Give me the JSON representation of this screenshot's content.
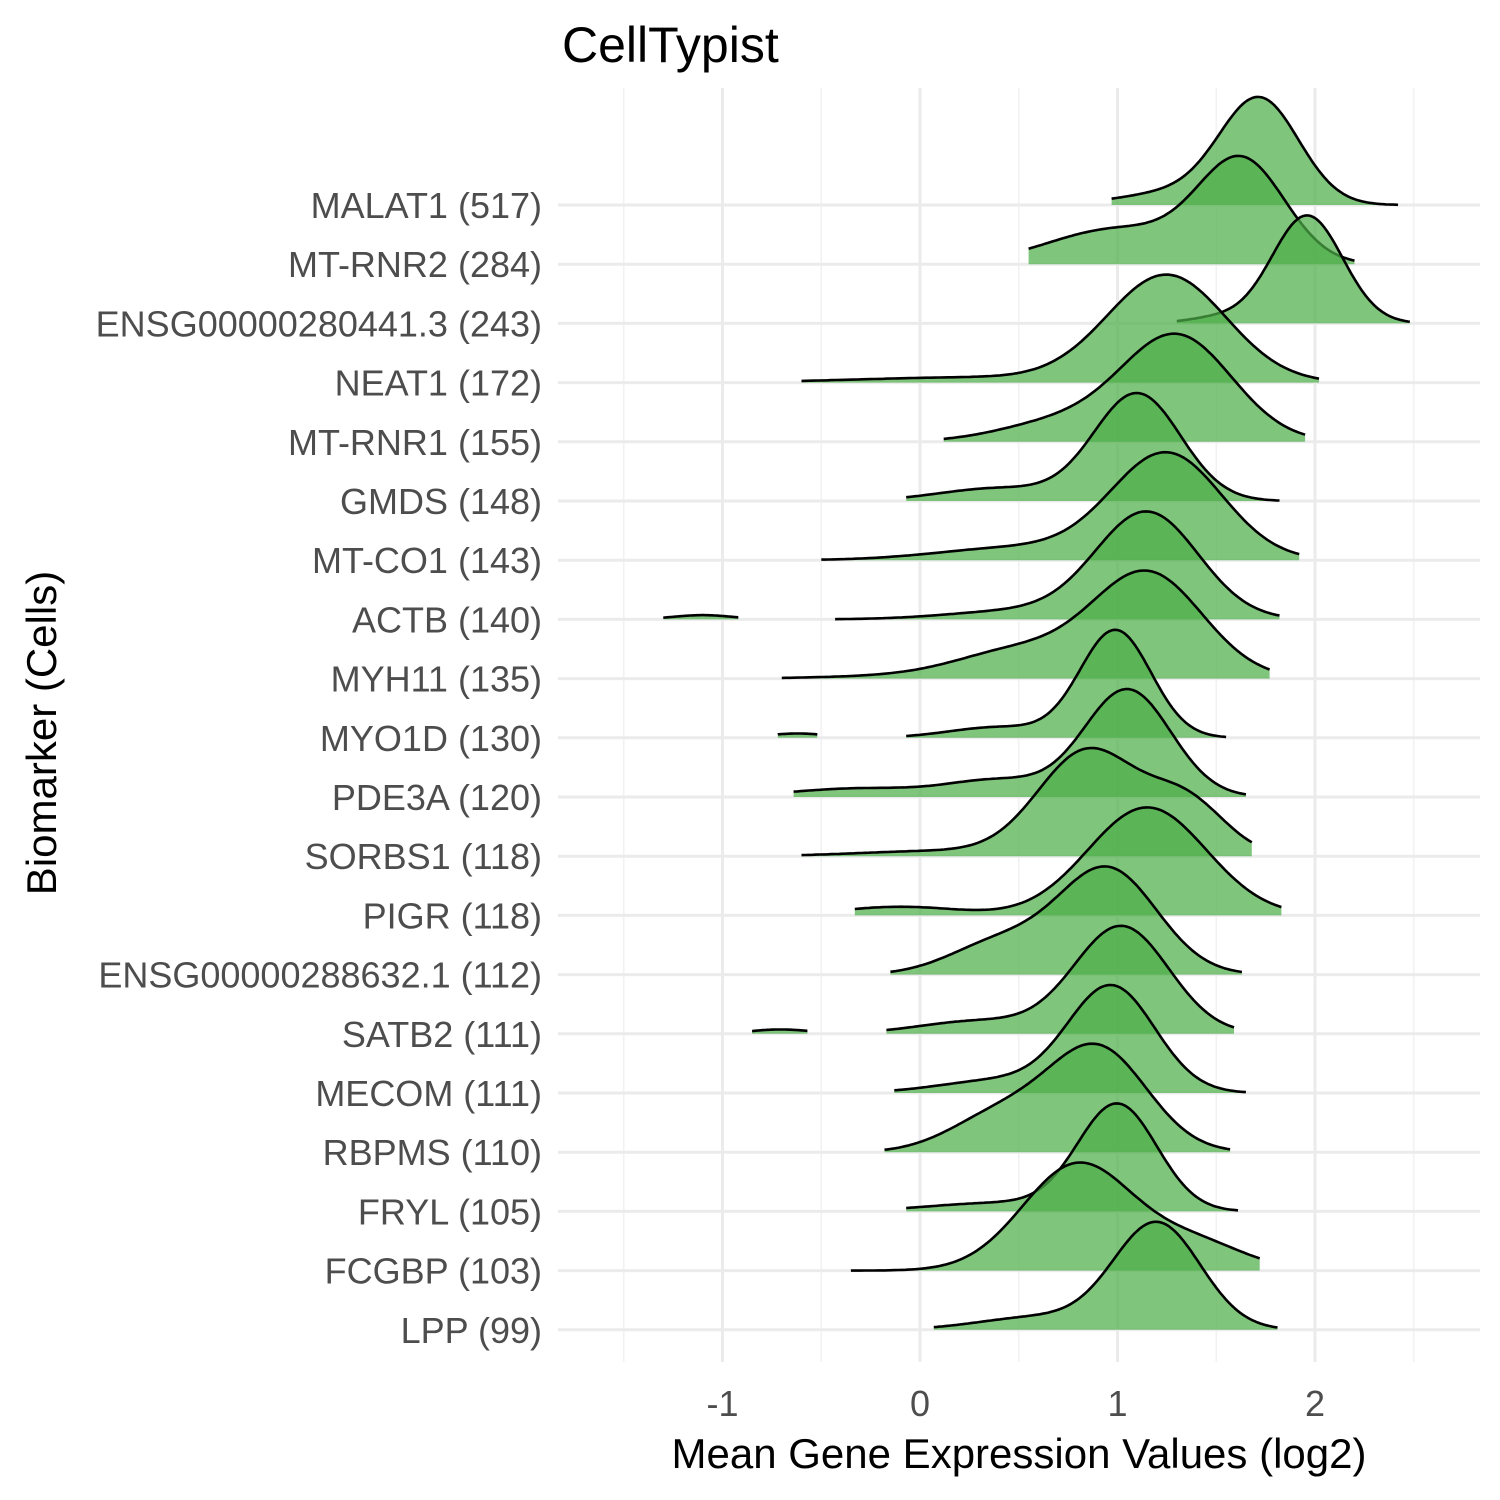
{
  "chart_data": {
    "type": "ridgeline",
    "title": "CellTypist",
    "xlabel": "Mean Gene Expression Values (log2)",
    "ylabel": "Biomarker (Cells)",
    "xlim": [
      -1.6,
      2.8
    ],
    "x_ticks": [
      -1,
      0,
      1,
      2
    ],
    "x_tick_labels": [
      "-1",
      "0",
      "1",
      "2"
    ],
    "grid": true,
    "fill_color": "#4daf4a",
    "fill_opacity": 0.72,
    "line_color": "#000000",
    "series": [
      {
        "label": "MALAT1 (517)",
        "segments": [
          {
            "min": 0.97,
            "max": 2.42,
            "peaks": [
              {
                "m": 1.72,
                "s": 0.2,
                "w": 1.0
              },
              {
                "m": 1.3,
                "s": 0.28,
                "w": 0.12
              }
            ]
          }
        ]
      },
      {
        "label": "MT-RNR2 (284)",
        "segments": [
          {
            "min": 0.55,
            "max": 2.2,
            "peaks": [
              {
                "m": 1.63,
                "s": 0.22,
                "w": 1.0
              },
              {
                "m": 1.0,
                "s": 0.35,
                "w": 0.35
              }
            ]
          }
        ]
      },
      {
        "label": "ENSG00000280441.3 (243)",
        "segments": [
          {
            "min": 1.3,
            "max": 2.48,
            "peaks": [
              {
                "m": 1.96,
                "s": 0.18,
                "w": 1.0
              },
              {
                "m": 1.5,
                "s": 0.15,
                "w": 0.05
              }
            ]
          }
        ]
      },
      {
        "label": "NEAT1 (172)",
        "segments": [
          {
            "min": -0.6,
            "max": 2.02,
            "peaks": [
              {
                "m": 1.25,
                "s": 0.3,
                "w": 1.0
              },
              {
                "m": 0.3,
                "s": 0.6,
                "w": 0.05
              }
            ]
          }
        ]
      },
      {
        "label": "MT-RNR1 (155)",
        "segments": [
          {
            "min": 0.12,
            "max": 1.95,
            "peaks": [
              {
                "m": 1.3,
                "s": 0.28,
                "w": 1.0
              },
              {
                "m": 0.7,
                "s": 0.3,
                "w": 0.18
              }
            ]
          }
        ]
      },
      {
        "label": "GMDS (148)",
        "segments": [
          {
            "min": -0.07,
            "max": 1.82,
            "peaks": [
              {
                "m": 1.1,
                "s": 0.22,
                "w": 1.0
              },
              {
                "m": 0.4,
                "s": 0.3,
                "w": 0.12
              }
            ]
          }
        ]
      },
      {
        "label": "MT-CO1 (143)",
        "segments": [
          {
            "min": -0.5,
            "max": 1.92,
            "peaks": [
              {
                "m": 1.25,
                "s": 0.28,
                "w": 1.0
              },
              {
                "m": 0.5,
                "s": 0.4,
                "w": 0.12
              }
            ]
          }
        ]
      },
      {
        "label": "ACTB (140)",
        "segments": [
          {
            "min": -1.3,
            "max": -0.92,
            "peaks": [
              {
                "m": -1.1,
                "s": 0.15,
                "w": 0.04
              }
            ]
          },
          {
            "min": -0.43,
            "max": 1.82,
            "peaks": [
              {
                "m": 1.15,
                "s": 0.26,
                "w": 1.0
              },
              {
                "m": 0.5,
                "s": 0.35,
                "w": 0.08
              }
            ]
          }
        ]
      },
      {
        "label": "MYH11 (135)",
        "segments": [
          {
            "min": -0.7,
            "max": 1.77,
            "peaks": [
              {
                "m": 1.15,
                "s": 0.28,
                "w": 1.0
              },
              {
                "m": 0.5,
                "s": 0.3,
                "w": 0.25
              },
              {
                "m": 0.0,
                "s": 0.4,
                "w": 0.03
              }
            ]
          }
        ]
      },
      {
        "label": "MYO1D (130)",
        "segments": [
          {
            "min": -0.72,
            "max": -0.52,
            "peaks": [
              {
                "m": -0.62,
                "s": 0.15,
                "w": 0.04
              }
            ]
          },
          {
            "min": -0.07,
            "max": 1.55,
            "peaks": [
              {
                "m": 0.99,
                "s": 0.18,
                "w": 1.0
              },
              {
                "m": 0.4,
                "s": 0.25,
                "w": 0.1
              }
            ]
          }
        ]
      },
      {
        "label": "PDE3A (120)",
        "segments": [
          {
            "min": -0.64,
            "max": 1.65,
            "peaks": [
              {
                "m": 1.05,
                "s": 0.22,
                "w": 1.0
              },
              {
                "m": 0.4,
                "s": 0.25,
                "w": 0.15
              },
              {
                "m": -0.3,
                "s": 0.35,
                "w": 0.08
              }
            ]
          }
        ]
      },
      {
        "label": "SORBS1 (118)",
        "segments": [
          {
            "min": -0.6,
            "max": 1.68,
            "peaks": [
              {
                "m": 0.85,
                "s": 0.25,
                "w": 1.0
              },
              {
                "m": 1.35,
                "s": 0.2,
                "w": 0.5
              },
              {
                "m": 0.1,
                "s": 0.4,
                "w": 0.05
              }
            ]
          }
        ]
      },
      {
        "label": "PIGR (118)",
        "segments": [
          {
            "min": -0.33,
            "max": 1.83,
            "peaks": [
              {
                "m": 1.15,
                "s": 0.3,
                "w": 1.0
              },
              {
                "m": -0.1,
                "s": 0.3,
                "w": 0.08
              }
            ]
          }
        ]
      },
      {
        "label": "ENSG00000288632.1 (112)",
        "segments": [
          {
            "min": -0.15,
            "max": 1.63,
            "peaks": [
              {
                "m": 0.95,
                "s": 0.25,
                "w": 1.0
              },
              {
                "m": 0.4,
                "s": 0.25,
                "w": 0.3
              }
            ]
          }
        ]
      },
      {
        "label": "SATB2 (111)",
        "segments": [
          {
            "min": -0.85,
            "max": -0.57,
            "peaks": [
              {
                "m": -0.71,
                "s": 0.15,
                "w": 0.04
              }
            ]
          },
          {
            "min": -0.17,
            "max": 1.59,
            "peaks": [
              {
                "m": 1.02,
                "s": 0.24,
                "w": 1.0
              },
              {
                "m": 0.3,
                "s": 0.3,
                "w": 0.12
              }
            ]
          }
        ]
      },
      {
        "label": "MECOM (111)",
        "segments": [
          {
            "min": -0.13,
            "max": 1.65,
            "peaks": [
              {
                "m": 0.97,
                "s": 0.22,
                "w": 1.0
              },
              {
                "m": 0.4,
                "s": 0.3,
                "w": 0.12
              }
            ]
          }
        ]
      },
      {
        "label": "RBPMS (110)",
        "segments": [
          {
            "min": -0.18,
            "max": 1.57,
            "peaks": [
              {
                "m": 0.9,
                "s": 0.25,
                "w": 1.0
              },
              {
                "m": 0.4,
                "s": 0.25,
                "w": 0.35
              }
            ]
          }
        ]
      },
      {
        "label": "FRYL (105)",
        "segments": [
          {
            "min": -0.07,
            "max": 1.61,
            "peaks": [
              {
                "m": 1.0,
                "s": 0.2,
                "w": 1.0
              },
              {
                "m": 0.4,
                "s": 0.35,
                "w": 0.08
              }
            ]
          }
        ]
      },
      {
        "label": "FCGBP (103)",
        "segments": [
          {
            "min": -0.35,
            "max": 1.72,
            "peaks": [
              {
                "m": 0.8,
                "s": 0.28,
                "w": 1.0
              },
              {
                "m": 1.4,
                "s": 0.25,
                "w": 0.25
              }
            ]
          }
        ]
      },
      {
        "label": "LPP (99)",
        "segments": [
          {
            "min": 0.07,
            "max": 1.81,
            "peaks": [
              {
                "m": 1.2,
                "s": 0.22,
                "w": 1.0
              },
              {
                "m": 0.6,
                "s": 0.3,
                "w": 0.12
              }
            ]
          }
        ]
      }
    ]
  }
}
